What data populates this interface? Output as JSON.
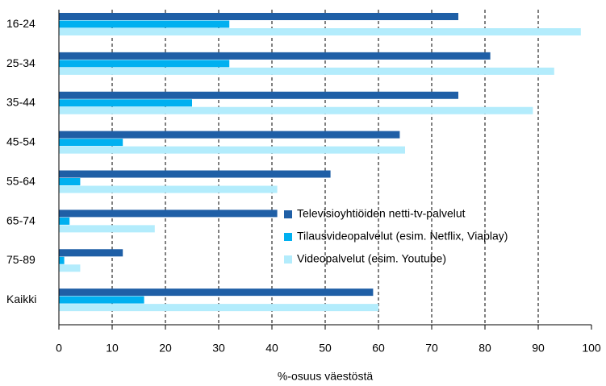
{
  "chart_data": {
    "type": "hbar",
    "xlabel": "%-osuus väestöstä",
    "categories": [
      "16-24",
      "25-34",
      "35-44",
      "45-54",
      "55-64",
      "65-74",
      "75-89",
      "Kaikki"
    ],
    "series": [
      {
        "name": "Televisioyhtiöiden netti-tv-palvelut",
        "color": "#1f5fa6",
        "values": [
          75,
          81,
          75,
          64,
          51,
          41,
          12,
          59
        ]
      },
      {
        "name": "Tilausvideopalvelut (esim. Netflix, Viaplay)",
        "color": "#00b0f0",
        "values": [
          32,
          32,
          25,
          12,
          4,
          2,
          1,
          16
        ]
      },
      {
        "name": "Videopalvelut (esim. Youtube)",
        "color": "#b3ecfc",
        "values": [
          98,
          93,
          89,
          65,
          41,
          18,
          4,
          60
        ]
      }
    ],
    "xlim": [
      0,
      100
    ],
    "xticks": [
      0,
      10,
      20,
      30,
      40,
      50,
      60,
      70,
      80,
      90,
      100
    ],
    "grid": true
  }
}
